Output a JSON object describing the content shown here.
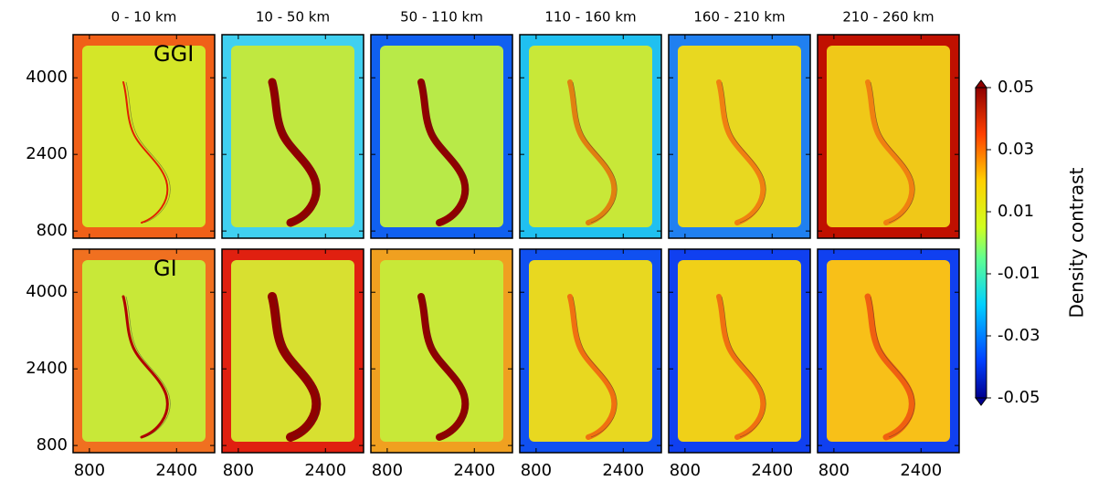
{
  "chart_data": {
    "type": "heatmap-grid",
    "columns": [
      "0 - 10 km",
      "10 - 50 km",
      "50 - 110 km",
      "110 - 160 km",
      "160 - 210 km",
      "210 - 260 km"
    ],
    "rows": [
      "GGI",
      "GI"
    ],
    "xlim": [
      500,
      3100
    ],
    "xticks": [
      800,
      2400
    ],
    "ylim": [
      650,
      4900
    ],
    "yticks": [
      800,
      2400,
      4000
    ],
    "colorbar": {
      "label": "Density contrast",
      "lim": [
        -0.05,
        0.05
      ],
      "ticks": [
        0.05,
        0.03,
        0.01,
        -0.01,
        -0.03,
        -0.05
      ]
    }
  }
}
